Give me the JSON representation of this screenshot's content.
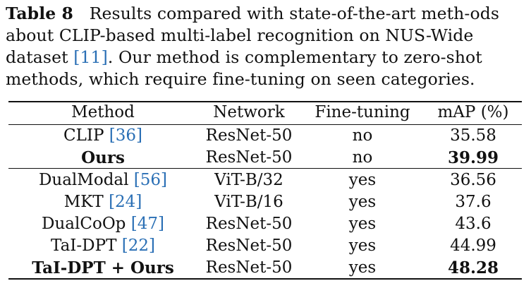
{
  "caption": {
    "label": "Table 8",
    "text_before_ref": "Results compared with state-of-the-art meth-ods about CLIP-based multi-label recognition on NUS-Wide dataset ",
    "ref": "[11]",
    "text_after_ref": ". Our method is complementary to zero-shot methods, which require fine-tuning on seen categories."
  },
  "table": {
    "headers": {
      "method": "Method",
      "network": "Network",
      "fine_tuning": "Fine-tuning",
      "map": "mAP (%)"
    },
    "rows": [
      {
        "method": "CLIP ",
        "ref": "[36]",
        "network": "ResNet-50",
        "fine_tuning": "no",
        "map": "35.58",
        "bold": false
      },
      {
        "method": "Ours",
        "ref": "",
        "network": "ResNet-50",
        "fine_tuning": "no",
        "map": "39.99",
        "bold": true
      },
      {
        "method": "DualModal ",
        "ref": "[56]",
        "network": "ViT-B/32",
        "fine_tuning": "yes",
        "map": "36.56",
        "bold": false
      },
      {
        "method": "MKT ",
        "ref": "[24]",
        "network": "ViT-B/16",
        "fine_tuning": "yes",
        "map": "37.6",
        "bold": false
      },
      {
        "method": "DualCoOp ",
        "ref": "[47]",
        "network": "ResNet-50",
        "fine_tuning": "yes",
        "map": "43.6",
        "bold": false
      },
      {
        "method": "TaI-DPT ",
        "ref": "[22]",
        "network": "ResNet-50",
        "fine_tuning": "yes",
        "map": "44.99",
        "bold": false
      },
      {
        "method": "TaI-DPT + Ours",
        "ref": "",
        "network": "ResNet-50",
        "fine_tuning": "yes",
        "map": "48.28",
        "bold": true
      }
    ]
  }
}
